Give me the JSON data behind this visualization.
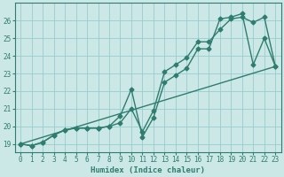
{
  "xlabel": "Humidex (Indice chaleur)",
  "background_color": "#cce8e6",
  "grid_color": "#99cccc",
  "line_color": "#2e7d6e",
  "spine_color": "#2e7d6e",
  "xlim": [
    -0.5,
    23.5
  ],
  "ylim": [
    18.55,
    27.0
  ],
  "xticks": [
    0,
    1,
    2,
    3,
    4,
    5,
    6,
    7,
    8,
    9,
    10,
    11,
    12,
    13,
    14,
    15,
    16,
    17,
    18,
    19,
    20,
    21,
    22,
    23
  ],
  "yticks": [
    19,
    20,
    21,
    22,
    23,
    24,
    25,
    26
  ],
  "line1_x": [
    0,
    1,
    2,
    3,
    4,
    5,
    6,
    7,
    8,
    9,
    10,
    11,
    12,
    13,
    14,
    15,
    16,
    17,
    18,
    19,
    20,
    21,
    22,
    23
  ],
  "line1_y": [
    19.0,
    18.9,
    19.1,
    19.5,
    19.8,
    19.9,
    19.9,
    19.9,
    20.0,
    20.6,
    22.1,
    19.4,
    20.5,
    22.5,
    22.9,
    23.3,
    24.4,
    24.4,
    26.1,
    26.2,
    26.4,
    23.5,
    25.0,
    23.4
  ],
  "line2_x": [
    0,
    1,
    2,
    3,
    4,
    5,
    6,
    7,
    8,
    9,
    10,
    11,
    12,
    13,
    14,
    15,
    16,
    17,
    18,
    19,
    20,
    21,
    22,
    23
  ],
  "line2_y": [
    19.0,
    18.9,
    19.1,
    19.5,
    19.8,
    19.9,
    19.9,
    19.9,
    20.0,
    20.2,
    21.0,
    19.7,
    20.9,
    23.1,
    23.5,
    23.9,
    24.8,
    24.8,
    25.5,
    26.1,
    26.2,
    25.9,
    26.2,
    23.4
  ],
  "line3_x": [
    0,
    23
  ],
  "line3_y": [
    19.0,
    23.4
  ],
  "marker_size": 2.5,
  "line_width": 1.0,
  "xlabel_fontsize": 6.5,
  "tick_fontsize": 5.5
}
